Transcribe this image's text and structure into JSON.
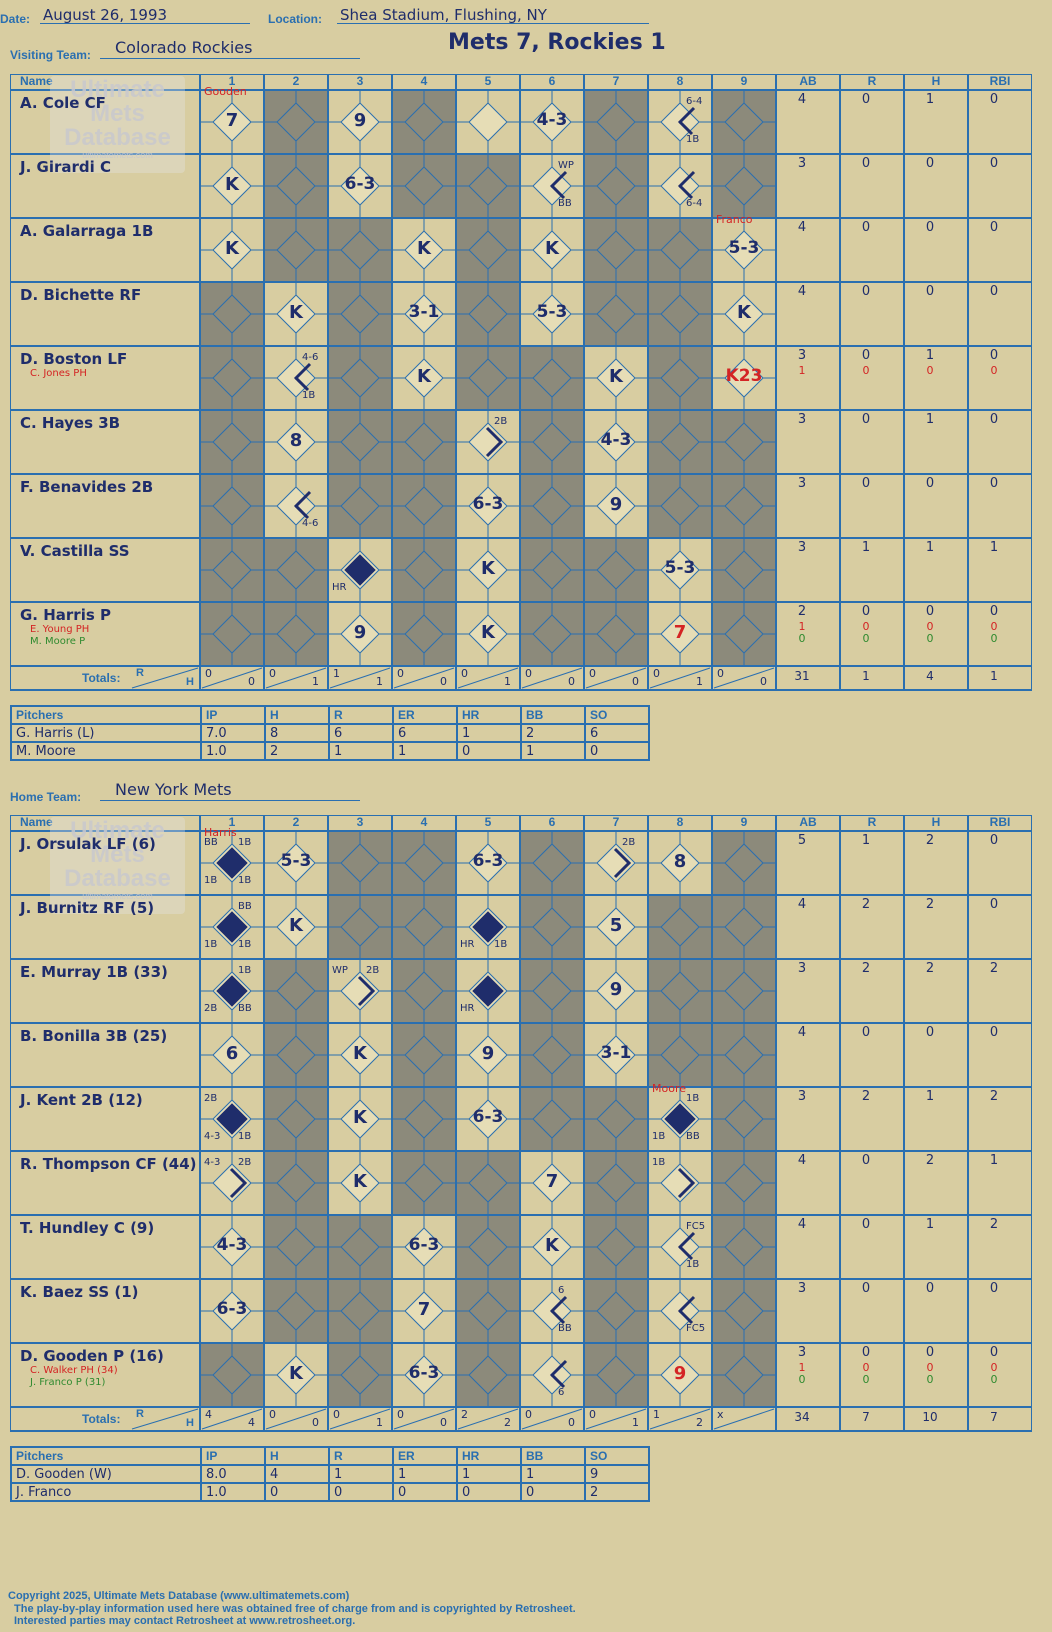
{
  "header": {
    "date_label": "Date:",
    "date": "August 26, 1993",
    "location_label": "Location:",
    "location": "Shea Stadium, Flushing, NY",
    "score_title": "Mets 7, Rockies 1",
    "visiting_label": "Visiting Team:",
    "visiting_team": "Colorado Rockies",
    "home_label": "Home Team:",
    "home_team": "New York Mets"
  },
  "watermark": {
    "line1": "Ultimate",
    "line2": "Mets",
    "line3": "Database",
    "url": "ultimatemets.com"
  },
  "columns": {
    "name": "Name",
    "innings": [
      "1",
      "2",
      "3",
      "4",
      "5",
      "6",
      "7",
      "8",
      "9"
    ],
    "stats": [
      "AB",
      "R",
      "H",
      "RBI"
    ]
  },
  "totals_label": "Totals:",
  "rh_labels": {
    "r": "R",
    "h": "H"
  },
  "colors": {
    "background": "#d8cda1",
    "grid": "#2a6fb0",
    "shade": "#8c8a7b",
    "ink": "#1f2d6b",
    "red": "#d42424",
    "green": "#2f8a2f"
  },
  "visitors": {
    "rows": [
      {
        "name": "A. Cole CF",
        "subs": [],
        "stats": [
          "4",
          "0",
          "1",
          "0"
        ],
        "sub_stats": []
      },
      {
        "name": "J. Girardi C",
        "subs": [],
        "stats": [
          "3",
          "0",
          "0",
          "0"
        ],
        "sub_stats": []
      },
      {
        "name": "A. Galarraga 1B",
        "subs": [],
        "stats": [
          "4",
          "0",
          "0",
          "0"
        ],
        "sub_stats": []
      },
      {
        "name": "D. Bichette RF",
        "subs": [],
        "stats": [
          "4",
          "0",
          "0",
          "0"
        ],
        "sub_stats": []
      },
      {
        "name": "D. Boston LF",
        "subs": [
          {
            "text": "C. Jones PH",
            "color": "red"
          }
        ],
        "stats": [
          "3",
          "0",
          "1",
          "0"
        ],
        "sub_stats": [
          {
            "vals": [
              "1",
              "0",
              "0",
              "0"
            ],
            "color": "red"
          }
        ]
      },
      {
        "name": "C. Hayes 3B",
        "subs": [],
        "stats": [
          "3",
          "0",
          "1",
          "0"
        ],
        "sub_stats": []
      },
      {
        "name": "F. Benavides 2B",
        "subs": [],
        "stats": [
          "3",
          "0",
          "0",
          "0"
        ],
        "sub_stats": []
      },
      {
        "name": "V. Castilla SS",
        "subs": [],
        "stats": [
          "3",
          "1",
          "1",
          "1"
        ],
        "sub_stats": []
      },
      {
        "name": "G. Harris P",
        "subs": [
          {
            "text": "E. Young PH",
            "color": "red"
          },
          {
            "text": "M. Moore P",
            "color": "green"
          }
        ],
        "stats": [
          "2",
          "0",
          "0",
          "0"
        ],
        "sub_stats": [
          {
            "vals": [
              "1",
              "0",
              "0",
              "0"
            ],
            "color": "red"
          },
          {
            "vals": [
              "0",
              "0",
              "0",
              "0"
            ],
            "color": "green"
          }
        ]
      }
    ],
    "shade": [
      [
        0,
        1,
        0,
        1,
        0,
        0,
        1,
        0,
        1
      ],
      [
        0,
        1,
        0,
        1,
        1,
        0,
        1,
        0,
        1
      ],
      [
        0,
        1,
        1,
        0,
        1,
        0,
        1,
        1,
        0
      ],
      [
        1,
        0,
        1,
        0,
        1,
        0,
        1,
        1,
        0
      ],
      [
        1,
        0,
        1,
        0,
        1,
        1,
        0,
        1,
        0
      ],
      [
        1,
        0,
        1,
        1,
        0,
        1,
        0,
        1,
        1
      ],
      [
        1,
        0,
        1,
        1,
        0,
        1,
        0,
        1,
        1
      ],
      [
        1,
        1,
        0,
        1,
        0,
        1,
        1,
        0,
        1
      ],
      [
        1,
        1,
        0,
        1,
        0,
        1,
        1,
        0,
        1
      ]
    ],
    "plays": [
      {
        "r": 0,
        "c": 0,
        "t": "7"
      },
      {
        "r": 0,
        "c": 2,
        "t": "9"
      },
      {
        "r": 0,
        "c": 5,
        "t": "4-3"
      },
      {
        "r": 0,
        "c": 7,
        "t": "",
        "tr": "6-4",
        "br": "1B",
        "line": true
      },
      {
        "r": 1,
        "c": 0,
        "t": "K"
      },
      {
        "r": 1,
        "c": 2,
        "t": "6-3"
      },
      {
        "r": 1,
        "c": 5,
        "t": "",
        "tr": "WP",
        "br": "BB",
        "line": true
      },
      {
        "r": 1,
        "c": 7,
        "t": "",
        "br": "6-4",
        "line": true
      },
      {
        "r": 2,
        "c": 0,
        "t": "K"
      },
      {
        "r": 2,
        "c": 3,
        "t": "K"
      },
      {
        "r": 2,
        "c": 5,
        "t": "K"
      },
      {
        "r": 2,
        "c": 8,
        "t": "5-3"
      },
      {
        "r": 3,
        "c": 1,
        "t": "K"
      },
      {
        "r": 3,
        "c": 3,
        "t": "3-1"
      },
      {
        "r": 3,
        "c": 5,
        "t": "5-3"
      },
      {
        "r": 3,
        "c": 8,
        "t": "K"
      },
      {
        "r": 4,
        "c": 1,
        "t": "",
        "tr": "4-6",
        "br": "1B",
        "line": true
      },
      {
        "r": 4,
        "c": 3,
        "t": "K"
      },
      {
        "r": 4,
        "c": 6,
        "t": "K"
      },
      {
        "r": 4,
        "c": 8,
        "t": "K23",
        "red": true
      },
      {
        "r": 5,
        "c": 1,
        "t": "8"
      },
      {
        "r": 5,
        "c": 4,
        "t": "",
        "tr": "2B",
        "line2": true
      },
      {
        "r": 5,
        "c": 6,
        "t": "4-3"
      },
      {
        "r": 6,
        "c": 1,
        "t": "",
        "br": "4-6",
        "line": true
      },
      {
        "r": 6,
        "c": 4,
        "t": "6-3"
      },
      {
        "r": 6,
        "c": 6,
        "t": "9"
      },
      {
        "r": 7,
        "c": 2,
        "t": "",
        "bl": "HR",
        "filled": true
      },
      {
        "r": 7,
        "c": 4,
        "t": "K"
      },
      {
        "r": 7,
        "c": 7,
        "t": "5-3"
      },
      {
        "r": 8,
        "c": 2,
        "t": "9"
      },
      {
        "r": 8,
        "c": 4,
        "t": "K"
      },
      {
        "r": 8,
        "c": 7,
        "t": "7",
        "red": true
      }
    ],
    "pitcher_notes": [
      {
        "r": 0,
        "c": 0,
        "t": "Gooden"
      },
      {
        "r": 2,
        "c": 8,
        "t": "Franco"
      }
    ],
    "totals": [
      [
        "0",
        "0"
      ],
      [
        "0",
        "1"
      ],
      [
        "1",
        "1"
      ],
      [
        "0",
        "0"
      ],
      [
        "0",
        "1"
      ],
      [
        "0",
        "0"
      ],
      [
        "0",
        "0"
      ],
      [
        "0",
        "1"
      ],
      [
        "0",
        "0"
      ]
    ],
    "total_stats": [
      "31",
      "1",
      "4",
      "1"
    ],
    "pitchers_header": [
      "Pitchers",
      "IP",
      "H",
      "R",
      "ER",
      "HR",
      "BB",
      "SO"
    ],
    "pitchers": [
      [
        "G. Harris (L)",
        "7.0",
        "8",
        "6",
        "6",
        "1",
        "2",
        "6"
      ],
      [
        "M. Moore",
        "1.0",
        "2",
        "1",
        "1",
        "0",
        "1",
        "0"
      ]
    ]
  },
  "home": {
    "rows": [
      {
        "name": "J. Orsulak LF (6)",
        "subs": [],
        "stats": [
          "5",
          "1",
          "2",
          "0"
        ],
        "sub_stats": []
      },
      {
        "name": "J. Burnitz RF (5)",
        "subs": [],
        "stats": [
          "4",
          "2",
          "2",
          "0"
        ],
        "sub_stats": []
      },
      {
        "name": "E. Murray 1B (33)",
        "subs": [],
        "stats": [
          "3",
          "2",
          "2",
          "2"
        ],
        "sub_stats": []
      },
      {
        "name": "B. Bonilla 3B (25)",
        "subs": [],
        "stats": [
          "4",
          "0",
          "0",
          "0"
        ],
        "sub_stats": []
      },
      {
        "name": "J. Kent 2B (12)",
        "subs": [],
        "stats": [
          "3",
          "2",
          "1",
          "2"
        ],
        "sub_stats": []
      },
      {
        "name": "R. Thompson CF (44)",
        "subs": [],
        "stats": [
          "4",
          "0",
          "2",
          "1"
        ],
        "sub_stats": []
      },
      {
        "name": "T. Hundley C (9)",
        "subs": [],
        "stats": [
          "4",
          "0",
          "1",
          "2"
        ],
        "sub_stats": []
      },
      {
        "name": "K. Baez SS (1)",
        "subs": [],
        "stats": [
          "3",
          "0",
          "0",
          "0"
        ],
        "sub_stats": []
      },
      {
        "name": "D. Gooden P (16)",
        "subs": [
          {
            "text": "C. Walker PH (34)",
            "color": "red"
          },
          {
            "text": "J. Franco P (31)",
            "color": "green"
          }
        ],
        "stats": [
          "3",
          "0",
          "0",
          "0"
        ],
        "sub_stats": [
          {
            "vals": [
              "1",
              "0",
              "0",
              "0"
            ],
            "color": "red"
          },
          {
            "vals": [
              "0",
              "0",
              "0",
              "0"
            ],
            "color": "green"
          }
        ]
      }
    ],
    "shade": [
      [
        0,
        0,
        1,
        1,
        0,
        1,
        0,
        0,
        1
      ],
      [
        0,
        0,
        1,
        1,
        0,
        1,
        0,
        1,
        1
      ],
      [
        0,
        1,
        0,
        1,
        0,
        1,
        0,
        1,
        1
      ],
      [
        0,
        1,
        0,
        1,
        0,
        1,
        0,
        1,
        1
      ],
      [
        0,
        1,
        0,
        1,
        0,
        1,
        1,
        0,
        1
      ],
      [
        0,
        1,
        0,
        1,
        1,
        0,
        1,
        0,
        1
      ],
      [
        0,
        1,
        1,
        0,
        1,
        0,
        1,
        0,
        1
      ],
      [
        0,
        1,
        1,
        0,
        1,
        0,
        1,
        0,
        1
      ],
      [
        1,
        0,
        1,
        0,
        1,
        0,
        1,
        0,
        1
      ]
    ],
    "plays": [
      {
        "r": 0,
        "c": 0,
        "t": "",
        "tl": "BB",
        "tr": "1B",
        "bl": "1B",
        "br": "1B",
        "filled": true
      },
      {
        "r": 0,
        "c": 1,
        "t": "5-3"
      },
      {
        "r": 0,
        "c": 4,
        "t": "6-3"
      },
      {
        "r": 0,
        "c": 6,
        "t": "",
        "tr": "2B",
        "line2": true
      },
      {
        "r": 0,
        "c": 7,
        "t": "8"
      },
      {
        "r": 1,
        "c": 0,
        "t": "",
        "tr": "BB",
        "bl": "1B",
        "br": "1B",
        "filled": true
      },
      {
        "r": 1,
        "c": 1,
        "t": "K"
      },
      {
        "r": 1,
        "c": 4,
        "t": "",
        "bl": "HR",
        "br": "1B",
        "filled": true
      },
      {
        "r": 1,
        "c": 6,
        "t": "5"
      },
      {
        "r": 2,
        "c": 0,
        "t": "",
        "tr": "1B",
        "bl": "2B",
        "br": "BB",
        "filled": true
      },
      {
        "r": 2,
        "c": 2,
        "t": "",
        "tl": "WP",
        "tr": "2B",
        "line2": true
      },
      {
        "r": 2,
        "c": 4,
        "t": "",
        "bl": "HR",
        "filled": true
      },
      {
        "r": 2,
        "c": 6,
        "t": "9"
      },
      {
        "r": 3,
        "c": 0,
        "t": "6"
      },
      {
        "r": 3,
        "c": 2,
        "t": "K"
      },
      {
        "r": 3,
        "c": 4,
        "t": "9"
      },
      {
        "r": 3,
        "c": 6,
        "t": "3-1"
      },
      {
        "r": 4,
        "c": 0,
        "t": "",
        "tl": "2B",
        "bl": "4-3",
        "br": "1B",
        "filled": true
      },
      {
        "r": 4,
        "c": 2,
        "t": "K"
      },
      {
        "r": 4,
        "c": 4,
        "t": "6-3"
      },
      {
        "r": 4,
        "c": 7,
        "t": "",
        "tr": "1B",
        "bl": "1B",
        "br": "BB",
        "filled": true
      },
      {
        "r": 5,
        "c": 0,
        "t": "",
        "tl": "4-3",
        "tr": "2B",
        "line2": true
      },
      {
        "r": 5,
        "c": 2,
        "t": "K"
      },
      {
        "r": 5,
        "c": 5,
        "t": "7"
      },
      {
        "r": 5,
        "c": 7,
        "t": "",
        "tl": "1B",
        "line2": true
      },
      {
        "r": 6,
        "c": 0,
        "t": "4-3"
      },
      {
        "r": 6,
        "c": 3,
        "t": "6-3"
      },
      {
        "r": 6,
        "c": 5,
        "t": "K"
      },
      {
        "r": 6,
        "c": 7,
        "t": "",
        "tr": "FC5",
        "br": "1B",
        "line": true
      },
      {
        "r": 7,
        "c": 0,
        "t": "6-3"
      },
      {
        "r": 7,
        "c": 3,
        "t": "7"
      },
      {
        "r": 7,
        "c": 5,
        "t": "",
        "tr": "6",
        "br": "BB",
        "line": true
      },
      {
        "r": 7,
        "c": 7,
        "t": "",
        "br": "FC5",
        "line": true
      },
      {
        "r": 8,
        "c": 1,
        "t": "K"
      },
      {
        "r": 8,
        "c": 3,
        "t": "6-3"
      },
      {
        "r": 8,
        "c": 5,
        "t": "",
        "br": "6",
        "line": true
      },
      {
        "r": 8,
        "c": 7,
        "t": "9",
        "red": true
      }
    ],
    "pitcher_notes": [
      {
        "r": 0,
        "c": 0,
        "t": "Harris"
      },
      {
        "r": 4,
        "c": 7,
        "t": "Moore"
      }
    ],
    "totals": [
      [
        "4",
        "4"
      ],
      [
        "0",
        "0"
      ],
      [
        "0",
        "1"
      ],
      [
        "0",
        "0"
      ],
      [
        "2",
        "2"
      ],
      [
        "0",
        "0"
      ],
      [
        "0",
        "1"
      ],
      [
        "1",
        "2"
      ],
      [
        "x",
        ""
      ]
    ],
    "total_stats": [
      "34",
      "7",
      "10",
      "7"
    ],
    "pitchers_header": [
      "Pitchers",
      "IP",
      "H",
      "R",
      "ER",
      "HR",
      "BB",
      "SO"
    ],
    "pitchers": [
      [
        "D. Gooden (W)",
        "8.0",
        "4",
        "1",
        "1",
        "1",
        "1",
        "9"
      ],
      [
        "J. Franco",
        "1.0",
        "0",
        "0",
        "0",
        "0",
        "0",
        "2"
      ]
    ]
  },
  "footer": {
    "copyright": "Copyright 2025, Ultimate Mets Database (www.ultimatemets.com)",
    "line2": "The play-by-play information used here was obtained free of charge from and is copyrighted by Retrosheet.",
    "line3": "Interested parties may contact Retrosheet at www.retrosheet.org."
  }
}
